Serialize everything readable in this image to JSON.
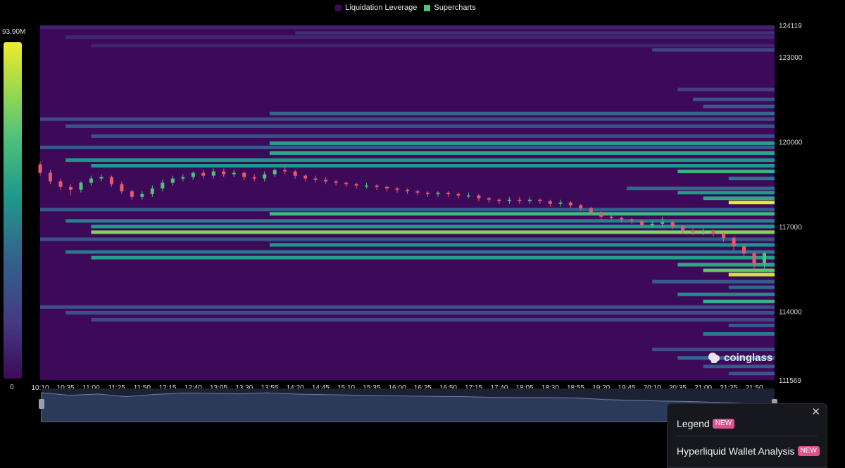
{
  "legend": [
    {
      "label": "Liquidation Leverage",
      "color": "#3d0a5a"
    },
    {
      "label": "Supercharts",
      "color": "#51c279"
    }
  ],
  "colorbar": {
    "max_label": "93.90M",
    "min_label": "0"
  },
  "watermark": "coinglass",
  "panel": {
    "close_glyph": "✕",
    "items": [
      {
        "label": "Legend",
        "badge": "NEW"
      },
      {
        "label": "Hyperliquid Wallet Analysis",
        "badge": "NEW"
      }
    ]
  },
  "chart_data": {
    "type": "heatmap",
    "title": "",
    "xlabel": "",
    "ylabel": "",
    "x_ticks": [
      "10:10",
      "10:35",
      "11:00",
      "11:25",
      "11:50",
      "12:15",
      "12:40",
      "13:05",
      "13:30",
      "13:55",
      "14:20",
      "14:45",
      "15:10",
      "15:35",
      "16:00",
      "16:25",
      "16:50",
      "17:15",
      "17:40",
      "18:05",
      "18:30",
      "18:55",
      "19:20",
      "19:45",
      "20:10",
      "20:35",
      "21:00",
      "21:25",
      "21:50"
    ],
    "x_range": [
      "10:10",
      "22:10"
    ],
    "y_ticks": [
      124119,
      123000,
      120000,
      117000,
      114000,
      111569
    ],
    "ylim": [
      111569,
      124119
    ],
    "value_range": [
      0,
      93900000
    ],
    "colorscale": [
      "#3d0a5a",
      "#443b84",
      "#34618d",
      "#1e9b8a",
      "#51c279",
      "#9cd94d",
      "#f0ec2c"
    ],
    "bands": [
      {
        "price": 124050,
        "start": "10:10",
        "intensity": 0.08
      },
      {
        "price": 123850,
        "start": "14:20",
        "intensity": 0.12
      },
      {
        "price": 123700,
        "start": "10:35",
        "intensity": 0.1
      },
      {
        "price": 123400,
        "start": "11:00",
        "intensity": 0.09
      },
      {
        "price": 123250,
        "start": "20:10",
        "intensity": 0.2
      },
      {
        "price": 121850,
        "start": "20:35",
        "intensity": 0.18
      },
      {
        "price": 121500,
        "start": "20:50",
        "intensity": 0.28
      },
      {
        "price": 121250,
        "start": "21:00",
        "intensity": 0.32
      },
      {
        "price": 121000,
        "start": "13:55",
        "intensity": 0.36
      },
      {
        "price": 120800,
        "start": "10:10",
        "intensity": 0.24
      },
      {
        "price": 120550,
        "start": "10:35",
        "intensity": 0.28
      },
      {
        "price": 120200,
        "start": "11:00",
        "intensity": 0.25
      },
      {
        "price": 119950,
        "start": "13:55",
        "intensity": 0.52
      },
      {
        "price": 119800,
        "start": "10:10",
        "intensity": 0.3
      },
      {
        "price": 119600,
        "start": "13:55",
        "intensity": 0.55
      },
      {
        "price": 119350,
        "start": "10:35",
        "intensity": 0.48
      },
      {
        "price": 119150,
        "start": "11:00",
        "intensity": 0.5
      },
      {
        "price": 118950,
        "start": "20:35",
        "intensity": 0.6
      },
      {
        "price": 118700,
        "start": "21:25",
        "intensity": 0.4
      },
      {
        "price": 118350,
        "start": "19:45",
        "intensity": 0.35
      },
      {
        "price": 118200,
        "start": "20:35",
        "intensity": 0.5
      },
      {
        "price": 118000,
        "start": "21:00",
        "intensity": 0.55
      },
      {
        "price": 117850,
        "start": "21:25",
        "intensity": 0.98
      },
      {
        "price": 117600,
        "start": "10:10",
        "intensity": 0.32
      },
      {
        "price": 117450,
        "start": "13:55",
        "intensity": 0.62
      },
      {
        "price": 117200,
        "start": "10:35",
        "intensity": 0.42
      },
      {
        "price": 117000,
        "start": "11:00",
        "intensity": 0.5
      },
      {
        "price": 116800,
        "start": "11:00",
        "intensity": 0.78
      },
      {
        "price": 116550,
        "start": "10:10",
        "intensity": 0.28
      },
      {
        "price": 116350,
        "start": "13:55",
        "intensity": 0.48
      },
      {
        "price": 116100,
        "start": "10:35",
        "intensity": 0.4
      },
      {
        "price": 115900,
        "start": "11:00",
        "intensity": 0.52
      },
      {
        "price": 115650,
        "start": "20:35",
        "intensity": 0.55
      },
      {
        "price": 115450,
        "start": "21:00",
        "intensity": 0.7
      },
      {
        "price": 115300,
        "start": "21:25",
        "intensity": 0.92
      },
      {
        "price": 115050,
        "start": "20:10",
        "intensity": 0.3
      },
      {
        "price": 114850,
        "start": "21:25",
        "intensity": 0.35
      },
      {
        "price": 114600,
        "start": "20:35",
        "intensity": 0.45
      },
      {
        "price": 114350,
        "start": "21:00",
        "intensity": 0.6
      },
      {
        "price": 114150,
        "start": "10:10",
        "intensity": 0.26
      },
      {
        "price": 113950,
        "start": "10:35",
        "intensity": 0.25
      },
      {
        "price": 113700,
        "start": "11:00",
        "intensity": 0.22
      },
      {
        "price": 113500,
        "start": "21:25",
        "intensity": 0.3
      },
      {
        "price": 113200,
        "start": "21:00",
        "intensity": 0.4
      },
      {
        "price": 112650,
        "start": "20:10",
        "intensity": 0.25
      },
      {
        "price": 112350,
        "start": "20:35",
        "intensity": 0.35
      },
      {
        "price": 112050,
        "start": "21:00",
        "intensity": 0.3
      },
      {
        "price": 111800,
        "start": "21:25",
        "intensity": 0.28
      }
    ],
    "price_series": [
      {
        "time": "10:10",
        "open": 119200,
        "close": 118900,
        "high": 119300,
        "low": 118800
      },
      {
        "time": "10:20",
        "open": 118900,
        "close": 118600,
        "high": 119000,
        "low": 118500
      },
      {
        "time": "10:30",
        "open": 118600,
        "close": 118400,
        "high": 118700,
        "low": 118300
      },
      {
        "time": "10:40",
        "open": 118400,
        "close": 118300,
        "high": 118500,
        "low": 118100
      },
      {
        "time": "10:50",
        "open": 118300,
        "close": 118550,
        "high": 118600,
        "low": 118200
      },
      {
        "time": "11:00",
        "open": 118550,
        "close": 118700,
        "high": 118800,
        "low": 118450
      },
      {
        "time": "11:10",
        "open": 118700,
        "close": 118750,
        "high": 118850,
        "low": 118600
      },
      {
        "time": "11:20",
        "open": 118750,
        "close": 118500,
        "high": 118800,
        "low": 118400
      },
      {
        "time": "11:30",
        "open": 118500,
        "close": 118250,
        "high": 118600,
        "low": 118150
      },
      {
        "time": "11:40",
        "open": 118250,
        "close": 118050,
        "high": 118300,
        "low": 117950
      },
      {
        "time": "11:50",
        "open": 118050,
        "close": 118150,
        "high": 118250,
        "low": 117950
      },
      {
        "time": "12:00",
        "open": 118150,
        "close": 118350,
        "high": 118450,
        "low": 118050
      },
      {
        "time": "12:10",
        "open": 118350,
        "close": 118550,
        "high": 118650,
        "low": 118250
      },
      {
        "time": "12:20",
        "open": 118550,
        "close": 118700,
        "high": 118800,
        "low": 118450
      },
      {
        "time": "12:30",
        "open": 118700,
        "close": 118750,
        "high": 118850,
        "low": 118600
      },
      {
        "time": "12:40",
        "open": 118750,
        "close": 118900,
        "high": 118950,
        "low": 118650
      },
      {
        "time": "12:50",
        "open": 118900,
        "close": 118800,
        "high": 119000,
        "low": 118700
      },
      {
        "time": "13:00",
        "open": 118800,
        "close": 118950,
        "high": 119050,
        "low": 118700
      },
      {
        "time": "13:10",
        "open": 118950,
        "close": 118850,
        "high": 119050,
        "low": 118750
      },
      {
        "time": "13:20",
        "open": 118850,
        "close": 118900,
        "high": 119000,
        "low": 118750
      },
      {
        "time": "13:30",
        "open": 118900,
        "close": 118750,
        "high": 118950,
        "low": 118650
      },
      {
        "time": "13:40",
        "open": 118750,
        "close": 118700,
        "high": 118850,
        "low": 118600
      },
      {
        "time": "13:50",
        "open": 118700,
        "close": 118850,
        "high": 118950,
        "low": 118600
      },
      {
        "time": "14:00",
        "open": 118850,
        "close": 119000,
        "high": 119050,
        "low": 118750
      },
      {
        "time": "14:10",
        "open": 119000,
        "close": 118950,
        "high": 119100,
        "low": 118850
      },
      {
        "time": "14:20",
        "open": 118950,
        "close": 118800,
        "high": 119000,
        "low": 118700
      },
      {
        "time": "14:30",
        "open": 118800,
        "close": 118700,
        "high": 118850,
        "low": 118600
      },
      {
        "time": "14:40",
        "open": 118700,
        "close": 118650,
        "high": 118800,
        "low": 118550
      },
      {
        "time": "14:50",
        "open": 118650,
        "close": 118600,
        "high": 118750,
        "low": 118500
      },
      {
        "time": "15:00",
        "open": 118600,
        "close": 118550,
        "high": 118650,
        "low": 118450
      },
      {
        "time": "15:10",
        "open": 118550,
        "close": 118500,
        "high": 118600,
        "low": 118400
      },
      {
        "time": "15:20",
        "open": 118500,
        "close": 118450,
        "high": 118550,
        "low": 118350
      },
      {
        "time": "15:30",
        "open": 118450,
        "close": 118450,
        "high": 118550,
        "low": 118350
      },
      {
        "time": "15:40",
        "open": 118450,
        "close": 118400,
        "high": 118500,
        "low": 118300
      },
      {
        "time": "15:50",
        "open": 118400,
        "close": 118350,
        "high": 118450,
        "low": 118250
      },
      {
        "time": "16:00",
        "open": 118350,
        "close": 118300,
        "high": 118400,
        "low": 118200
      },
      {
        "time": "16:10",
        "open": 118300,
        "close": 118250,
        "high": 118350,
        "low": 118150
      },
      {
        "time": "16:20",
        "open": 118250,
        "close": 118200,
        "high": 118300,
        "low": 118100
      },
      {
        "time": "16:30",
        "open": 118200,
        "close": 118150,
        "high": 118250,
        "low": 118050
      },
      {
        "time": "16:40",
        "open": 118150,
        "close": 118200,
        "high": 118250,
        "low": 118050
      },
      {
        "time": "16:50",
        "open": 118200,
        "close": 118150,
        "high": 118250,
        "low": 118050
      },
      {
        "time": "17:00",
        "open": 118150,
        "close": 118100,
        "high": 118200,
        "low": 118000
      },
      {
        "time": "17:10",
        "open": 118100,
        "close": 118100,
        "high": 118200,
        "low": 118000
      },
      {
        "time": "17:20",
        "open": 118100,
        "close": 118000,
        "high": 118150,
        "low": 117900
      },
      {
        "time": "17:30",
        "open": 118000,
        "close": 117950,
        "high": 118050,
        "low": 117850
      },
      {
        "time": "17:40",
        "open": 117950,
        "close": 117900,
        "high": 118000,
        "low": 117800
      },
      {
        "time": "17:50",
        "open": 117900,
        "close": 117950,
        "high": 118050,
        "low": 117800
      },
      {
        "time": "18:00",
        "open": 117950,
        "close": 117900,
        "high": 118050,
        "low": 117800
      },
      {
        "time": "18:10",
        "open": 117900,
        "close": 117950,
        "high": 118050,
        "low": 117800
      },
      {
        "time": "18:20",
        "open": 117950,
        "close": 117900,
        "high": 118000,
        "low": 117800
      },
      {
        "time": "18:30",
        "open": 117900,
        "close": 117800,
        "high": 117950,
        "low": 117700
      },
      {
        "time": "18:40",
        "open": 117800,
        "close": 117850,
        "high": 117950,
        "low": 117700
      },
      {
        "time": "18:50",
        "open": 117850,
        "close": 117750,
        "high": 117900,
        "low": 117650
      },
      {
        "time": "19:00",
        "open": 117750,
        "close": 117650,
        "high": 117800,
        "low": 117550
      },
      {
        "time": "19:10",
        "open": 117650,
        "close": 117500,
        "high": 117700,
        "low": 117400
      },
      {
        "time": "19:20",
        "open": 117500,
        "close": 117350,
        "high": 117550,
        "low": 117250
      },
      {
        "time": "19:30",
        "open": 117350,
        "close": 117300,
        "high": 117400,
        "low": 117200
      },
      {
        "time": "19:40",
        "open": 117300,
        "close": 117250,
        "high": 117350,
        "low": 117150
      },
      {
        "time": "19:50",
        "open": 117250,
        "close": 117200,
        "high": 117300,
        "low": 117100
      },
      {
        "time": "20:00",
        "open": 117200,
        "close": 117050,
        "high": 117250,
        "low": 116950
      },
      {
        "time": "20:10",
        "open": 117050,
        "close": 117100,
        "high": 117200,
        "low": 116950
      },
      {
        "time": "20:20",
        "open": 117100,
        "close": 117150,
        "high": 117350,
        "low": 117000
      },
      {
        "time": "20:30",
        "open": 117150,
        "close": 117000,
        "high": 117200,
        "low": 116900
      },
      {
        "time": "20:40",
        "open": 117000,
        "close": 116850,
        "high": 117050,
        "low": 116750
      },
      {
        "time": "20:50",
        "open": 116850,
        "close": 116800,
        "high": 116950,
        "low": 116700
      },
      {
        "time": "21:00",
        "open": 116800,
        "close": 116850,
        "high": 116950,
        "low": 116700
      },
      {
        "time": "21:10",
        "open": 116850,
        "close": 116750,
        "high": 116900,
        "low": 116650
      },
      {
        "time": "21:20",
        "open": 116750,
        "close": 116600,
        "high": 116800,
        "low": 116450
      },
      {
        "time": "21:30",
        "open": 116600,
        "close": 116300,
        "high": 116650,
        "low": 116150
      },
      {
        "time": "21:40",
        "open": 116300,
        "close": 116050,
        "high": 116350,
        "low": 115900
      },
      {
        "time": "21:50",
        "open": 116050,
        "close": 115700,
        "high": 116100,
        "low": 115500
      },
      {
        "time": "22:00",
        "open": 115700,
        "close": 116050,
        "high": 116100,
        "low": 115400
      }
    ],
    "navigator_series": [
      119000,
      118400,
      118700,
      118100,
      118600,
      118900,
      118850,
      118750,
      118950,
      118700,
      118550,
      118450,
      118350,
      118250,
      118150,
      118100,
      117950,
      117900,
      117900,
      117800,
      117450,
      117250,
      117100,
      117000,
      116800,
      116500,
      115800
    ]
  }
}
